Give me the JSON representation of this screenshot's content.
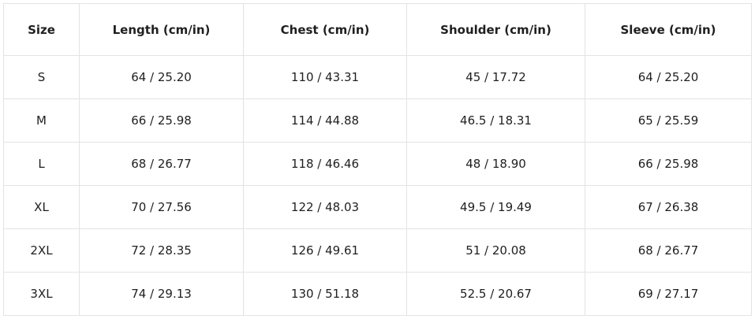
{
  "table": {
    "header": [
      "Size",
      "Length (cm/in)",
      "Chest (cm/in)",
      "Shoulder (cm/in)",
      "Sleeve (cm/in)"
    ],
    "rows": [
      [
        "S",
        "64 / 25.20",
        "110 / 43.31",
        "45 / 17.72",
        "64 / 25.20"
      ],
      [
        "M",
        "66 / 25.98",
        "114 / 44.88",
        "46.5 / 18.31",
        "65 / 25.59"
      ],
      [
        "L",
        "68 / 26.77",
        "118 / 46.46",
        "48 / 18.90",
        "66 / 25.98"
      ],
      [
        "XL",
        "70 / 27.56",
        "122 / 48.03",
        "49.5 / 19.49",
        "67 / 26.38"
      ],
      [
        "2XL",
        "72 / 28.35",
        "126 / 49.61",
        "51 / 20.08",
        "68 / 26.77"
      ],
      [
        "3XL",
        "74 / 29.13",
        "130 / 51.18",
        "52.5 / 20.67",
        "69 / 27.17"
      ]
    ]
  }
}
